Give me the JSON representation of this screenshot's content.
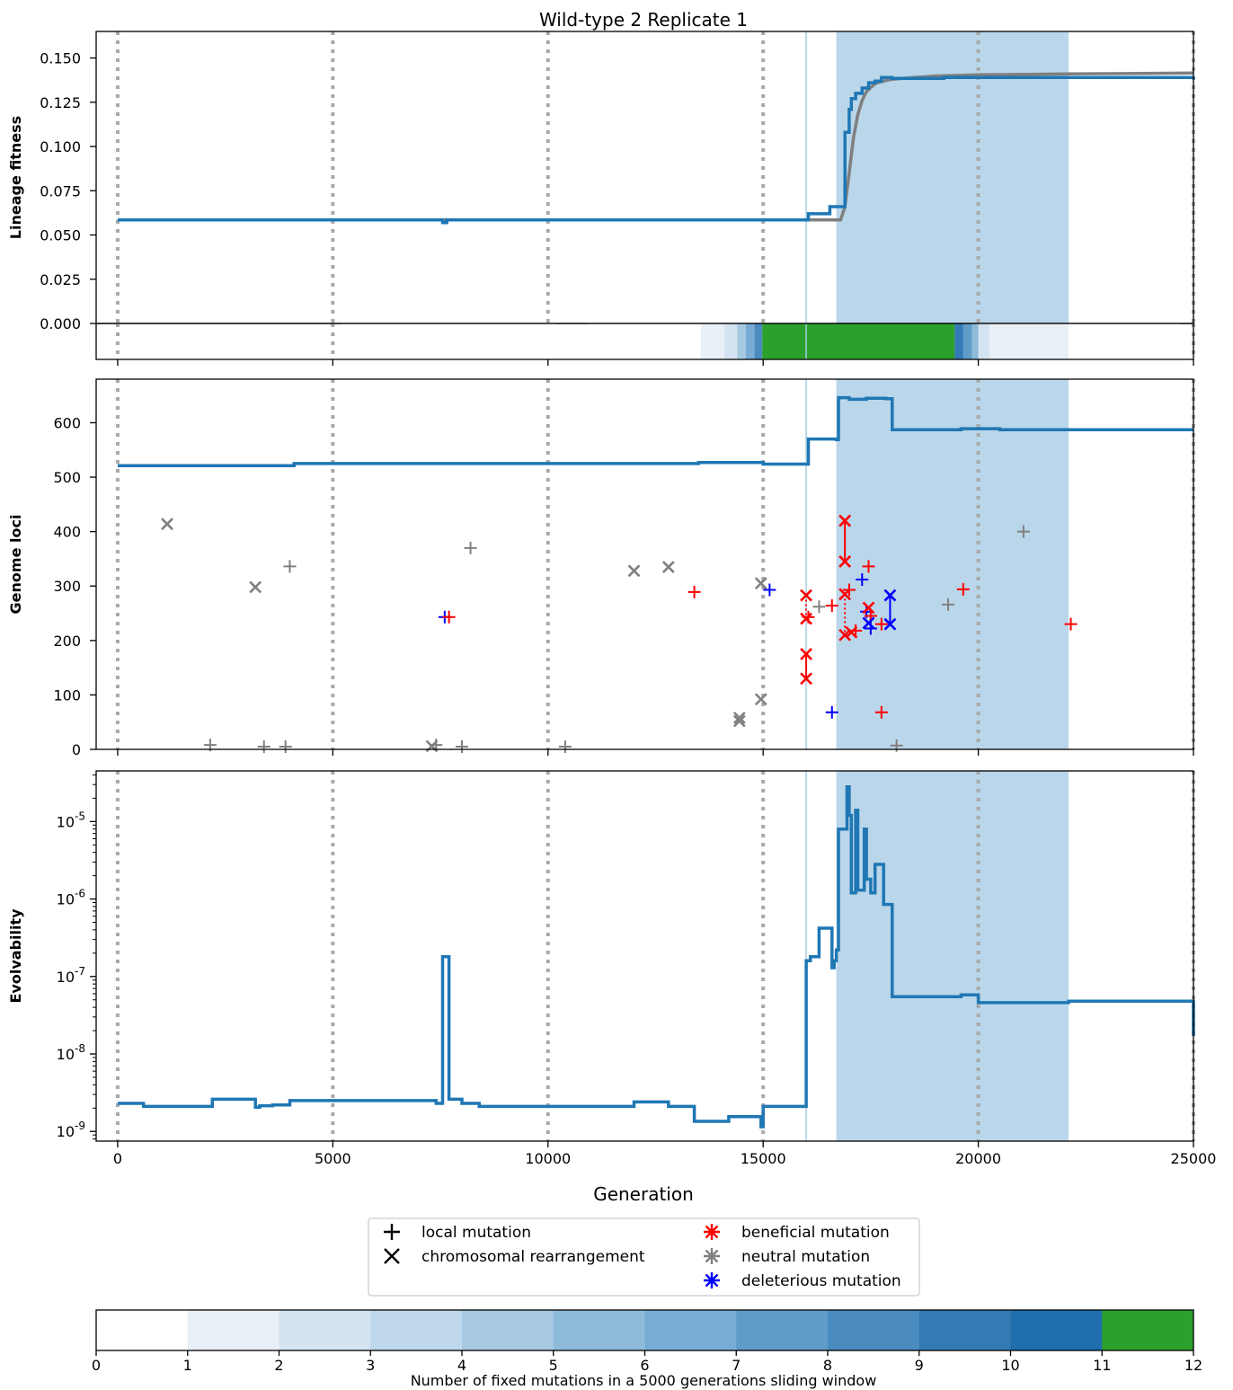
{
  "title": "Wild-type 2 Replicate 1",
  "x_axis": {
    "label": "Generation",
    "range": [
      -500,
      25000
    ],
    "ticks": [
      0,
      5000,
      10000,
      15000,
      20000,
      25000
    ],
    "tick_labels": [
      "0",
      "5000",
      "10000",
      "15000",
      "20000",
      "25000"
    ]
  },
  "colors": {
    "lineage": "#1f77b4",
    "reference": "#7f7f7f",
    "window_shade": "#bad6ea",
    "beneficial": "#ff0000",
    "neutral": "#808080",
    "deleterious": "#0000ff",
    "saturated": "#2ca02c",
    "grid_dotted": "#a9a9a9"
  },
  "markers": {
    "dotted_generations": [
      0,
      5000,
      10000,
      15000,
      20000,
      25000
    ],
    "thin_line_generation": 16000,
    "shaded_window": [
      16700,
      22100
    ]
  },
  "legend": {
    "items": [
      {
        "symbol": "plus",
        "color": "#000000",
        "label": "local mutation"
      },
      {
        "symbol": "cross",
        "color": "#000000",
        "label": "chromosomal rearrangement"
      },
      {
        "symbol": "star",
        "color": "#ff0000",
        "label": "beneficial mutation"
      },
      {
        "symbol": "star",
        "color": "#808080",
        "label": "neutral mutation"
      },
      {
        "symbol": "star",
        "color": "#0000ff",
        "label": "deleterious mutation"
      }
    ]
  },
  "colorbar": {
    "label": "Number of fixed mutations in a 5000 generations sliding window",
    "ticks": [
      "0",
      "1",
      "2",
      "3",
      "4",
      "5",
      "6",
      "7",
      "8",
      "9",
      "10",
      "11",
      "12"
    ],
    "colors": [
      "#ffffff",
      "#e8eff7",
      "#d4e3f1",
      "#bed7ea",
      "#a7c9e2",
      "#8fbbdb",
      "#78acd4",
      "#619cc9",
      "#4a8bc0",
      "#327bb5",
      "#1f6fae",
      "#2ca02c"
    ]
  },
  "chart_data": [
    {
      "type": "line",
      "panel": "fitness",
      "ylabel": "Lineage fitness",
      "ylim": [
        0,
        0.165
      ],
      "yticks": [
        0.0,
        0.025,
        0.05,
        0.075,
        0.1,
        0.125,
        0.15
      ],
      "ytick_labels": [
        "0.000",
        "0.025",
        "0.050",
        "0.075",
        "0.100",
        "0.125",
        "0.150"
      ],
      "series": [
        {
          "role": "lineage fitness (step)",
          "color": "#1f77b4",
          "x": [
            0,
            7500,
            7550,
            7650,
            15000,
            16000,
            16050,
            16550,
            16900,
            17000,
            17050,
            17150,
            17300,
            17450,
            17600,
            17750,
            18000,
            19200,
            25000
          ],
          "y": [
            0.0585,
            0.0585,
            0.057,
            0.0585,
            0.0585,
            0.0585,
            0.062,
            0.066,
            0.108,
            0.121,
            0.127,
            0.13,
            0.133,
            0.136,
            0.137,
            0.139,
            0.1385,
            0.139,
            0.1395
          ]
        },
        {
          "role": "reference fit (smooth)",
          "color": "#7f7f7f",
          "x": [
            0,
            16800,
            16900,
            17000,
            17100,
            17200,
            17300,
            17400,
            17600,
            17800,
            18000,
            18500,
            19000,
            20000,
            22000,
            25000
          ],
          "y": [
            0.0585,
            0.0585,
            0.066,
            0.085,
            0.105,
            0.118,
            0.126,
            0.131,
            0.1355,
            0.137,
            0.138,
            0.139,
            0.1398,
            0.1405,
            0.141,
            0.1415
          ]
        }
      ]
    },
    {
      "type": "heatmap",
      "panel": "fixed-mutation strip",
      "description_values": "count of fixed mutations in sliding window (colorbar scale 0-12)",
      "segments": [
        {
          "x0": 5200,
          "x1": 10200,
          "count": 1
        },
        {
          "x0": 10900,
          "x1": 13550,
          "count": 1
        },
        {
          "x0": 13550,
          "x1": 14100,
          "count": 2
        },
        {
          "x0": 14100,
          "x1": 14400,
          "count": 3
        },
        {
          "x0": 14400,
          "x1": 14600,
          "count": 5
        },
        {
          "x0": 14600,
          "x1": 14800,
          "count": 7
        },
        {
          "x0": 14800,
          "x1": 14980,
          "count": 9
        },
        {
          "x0": 14980,
          "x1": 19450,
          "count": 12
        },
        {
          "x0": 19450,
          "x1": 19650,
          "count": 10
        },
        {
          "x0": 19650,
          "x1": 19850,
          "count": 8
        },
        {
          "x0": 19850,
          "x1": 20000,
          "count": 6
        },
        {
          "x0": 20000,
          "x1": 20250,
          "count": 3
        },
        {
          "x0": 20250,
          "x1": 22100,
          "count": 2
        },
        {
          "x0": 22100,
          "x1": 24700,
          "count": 1
        }
      ]
    },
    {
      "type": "scatter",
      "panel": "genome",
      "ylabel": "Genome loci",
      "ylim": [
        0,
        680
      ],
      "yticks": [
        0,
        100,
        200,
        300,
        400,
        500,
        600
      ],
      "ytick_labels": [
        "0",
        "100",
        "200",
        "300",
        "400",
        "500",
        "600"
      ],
      "genome_size": {
        "color": "#1f77b4",
        "x": [
          0,
          4000,
          4100,
          13400,
          13500,
          14200,
          15000,
          16000,
          16050,
          16700,
          16750,
          17000,
          17400,
          17600,
          17850,
          18000,
          19600,
          20000,
          20500,
          25000
        ],
        "y": [
          521,
          521,
          525,
          525,
          527,
          527,
          524,
          524,
          570,
          569,
          646,
          643,
          645,
          645,
          644,
          587,
          589,
          589,
          587,
          587
        ]
      },
      "points": [
        {
          "x": 1150,
          "y": 414,
          "m": "x",
          "c": "neutral"
        },
        {
          "x": 3200,
          "y": 298,
          "m": "x",
          "c": "neutral"
        },
        {
          "x": 4000,
          "y": 336,
          "m": "+",
          "c": "neutral"
        },
        {
          "x": 2150,
          "y": 8,
          "m": "+",
          "c": "neutral"
        },
        {
          "x": 3400,
          "y": 5,
          "m": "+",
          "c": "neutral"
        },
        {
          "x": 3900,
          "y": 5,
          "m": "+",
          "c": "neutral"
        },
        {
          "x": 7300,
          "y": 6,
          "m": "x",
          "c": "neutral"
        },
        {
          "x": 7400,
          "y": 8,
          "m": "+",
          "c": "neutral"
        },
        {
          "x": 8000,
          "y": 5,
          "m": "+",
          "c": "neutral"
        },
        {
          "x": 10400,
          "y": 5,
          "m": "+",
          "c": "neutral"
        },
        {
          "x": 8200,
          "y": 370,
          "m": "+",
          "c": "neutral"
        },
        {
          "x": 7600,
          "y": 243,
          "m": "+",
          "c": "deleterious"
        },
        {
          "x": 7700,
          "y": 243,
          "m": "+",
          "c": "beneficial"
        },
        {
          "x": 12000,
          "y": 328,
          "m": "x",
          "c": "neutral"
        },
        {
          "x": 12800,
          "y": 335,
          "m": "x",
          "c": "neutral"
        },
        {
          "x": 13400,
          "y": 289,
          "m": "+",
          "c": "beneficial"
        },
        {
          "x": 14450,
          "y": 58,
          "m": "x",
          "c": "neutral"
        },
        {
          "x": 14450,
          "y": 52,
          "m": "x",
          "c": "neutral"
        },
        {
          "x": 14950,
          "y": 92,
          "m": "x",
          "c": "neutral"
        },
        {
          "x": 14950,
          "y": 305,
          "m": "x",
          "c": "neutral"
        },
        {
          "x": 15150,
          "y": 293,
          "m": "+",
          "c": "deleterious"
        },
        {
          "x": 16000,
          "y": 283,
          "m": "x",
          "c": "beneficial"
        },
        {
          "x": 16000,
          "y": 240,
          "m": "x",
          "c": "beneficial"
        },
        {
          "x": 16050,
          "y": 243,
          "m": "+",
          "c": "beneficial"
        },
        {
          "x": 16000,
          "y": 175,
          "m": "x",
          "c": "beneficial"
        },
        {
          "x": 16000,
          "y": 130,
          "m": "x",
          "c": "beneficial"
        },
        {
          "x": 16300,
          "y": 262,
          "m": "+",
          "c": "neutral"
        },
        {
          "x": 16600,
          "y": 264,
          "m": "+",
          "c": "beneficial"
        },
        {
          "x": 16600,
          "y": 68,
          "m": "+",
          "c": "deleterious"
        },
        {
          "x": 16900,
          "y": 420,
          "m": "x",
          "c": "beneficial"
        },
        {
          "x": 16900,
          "y": 345,
          "m": "x",
          "c": "beneficial"
        },
        {
          "x": 16900,
          "y": 285,
          "m": "x",
          "c": "beneficial"
        },
        {
          "x": 17000,
          "y": 293,
          "m": "+",
          "c": "beneficial"
        },
        {
          "x": 16900,
          "y": 210,
          "m": "x",
          "c": "beneficial"
        },
        {
          "x": 17050,
          "y": 215,
          "m": "x",
          "c": "beneficial"
        },
        {
          "x": 17150,
          "y": 218,
          "m": "+",
          "c": "beneficial"
        },
        {
          "x": 17300,
          "y": 312,
          "m": "+",
          "c": "deleterious"
        },
        {
          "x": 17450,
          "y": 336,
          "m": "+",
          "c": "beneficial"
        },
        {
          "x": 17400,
          "y": 253,
          "m": "+",
          "c": "deleterious"
        },
        {
          "x": 17450,
          "y": 260,
          "m": "x",
          "c": "beneficial"
        },
        {
          "x": 17500,
          "y": 245,
          "m": "+",
          "c": "beneficial"
        },
        {
          "x": 17450,
          "y": 232,
          "m": "x",
          "c": "deleterious"
        },
        {
          "x": 17500,
          "y": 222,
          "m": "+",
          "c": "deleterious"
        },
        {
          "x": 17750,
          "y": 230,
          "m": "+",
          "c": "beneficial"
        },
        {
          "x": 17750,
          "y": 68,
          "m": "+",
          "c": "beneficial"
        },
        {
          "x": 17950,
          "y": 283,
          "m": "x",
          "c": "deleterious"
        },
        {
          "x": 17950,
          "y": 230,
          "m": "x",
          "c": "deleterious"
        },
        {
          "x": 18100,
          "y": 7,
          "m": "+",
          "c": "neutral"
        },
        {
          "x": 19300,
          "y": 266,
          "m": "+",
          "c": "neutral"
        },
        {
          "x": 19650,
          "y": 294,
          "m": "+",
          "c": "beneficial"
        },
        {
          "x": 21050,
          "y": 400,
          "m": "+",
          "c": "neutral"
        },
        {
          "x": 22150,
          "y": 230,
          "m": "+",
          "c": "beneficial"
        }
      ],
      "links": [
        {
          "x": 16000,
          "y1": 175,
          "y2": 130,
          "c": "beneficial",
          "dotted": false
        },
        {
          "x": 16000,
          "y1": 283,
          "y2": 240,
          "c": "beneficial",
          "dotted": true
        },
        {
          "x": 16900,
          "y1": 420,
          "y2": 345,
          "c": "beneficial",
          "dotted": false
        },
        {
          "x": 16900,
          "y1": 285,
          "y2": 210,
          "c": "beneficial",
          "dotted": true
        },
        {
          "x": 17950,
          "y1": 283,
          "y2": 230,
          "c": "deleterious",
          "dotted": false
        }
      ]
    },
    {
      "type": "line",
      "panel": "evolvability",
      "ylabel": "Evolvability",
      "yscale": "log",
      "ylim": [
        7.5e-10,
        4.5e-05
      ],
      "yticks": [
        1e-09,
        1e-08,
        1e-07,
        1e-06,
        1e-05
      ],
      "ytick_labels": [
        "10^-9",
        "10^-8",
        "10^-7",
        "10^-6",
        "10^-5"
      ],
      "series": [
        {
          "role": "evolvability (step)",
          "color": "#1f77b4",
          "x": [
            0,
            600,
            2200,
            3200,
            3300,
            3600,
            4000,
            7400,
            7550,
            7700,
            8000,
            8400,
            12000,
            12800,
            13400,
            14200,
            14950,
            15000,
            16000,
            16100,
            16300,
            16600,
            16650,
            16700,
            16750,
            16950,
            17000,
            17050,
            17150,
            17200,
            17350,
            17400,
            17500,
            17600,
            17800,
            18000,
            19600,
            20000,
            22100,
            25000
          ],
          "y": [
            2.3e-09,
            2.1e-09,
            2.6e-09,
            2.05e-09,
            2.15e-09,
            2.2e-09,
            2.5e-09,
            2.3e-09,
            1.8e-07,
            2.6e-09,
            2.3e-09,
            2.1e-09,
            2.4e-09,
            2.1e-09,
            1.35e-09,
            1.55e-09,
            1.15e-09,
            2.1e-09,
            1.6e-07,
            1.8e-07,
            4.2e-07,
            1.3e-07,
            1.6e-07,
            2.2e-07,
            8e-06,
            2.8e-05,
            1.2e-05,
            1.2e-06,
            1.4e-05,
            1.3e-06,
            8e-06,
            1.8e-06,
            1.2e-06,
            2.8e-06,
            8.5e-07,
            5.5e-08,
            5.8e-08,
            4.6e-08,
            4.8e-08,
            1.7e-08
          ]
        }
      ]
    }
  ]
}
